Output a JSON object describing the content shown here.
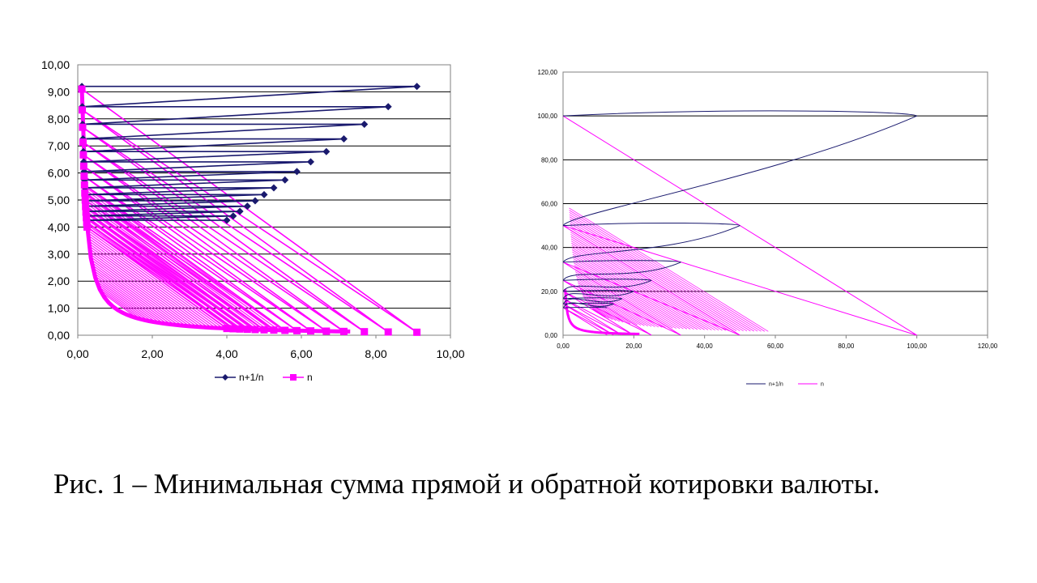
{
  "caption": "Рис. 1 – Минимальная сумма прямой и обратной котировки валюты.",
  "chart_data": [
    {
      "type": "line",
      "title": "",
      "xlabel": "",
      "ylabel": "",
      "xlim": [
        0,
        10
      ],
      "ylim": [
        0,
        10
      ],
      "x_ticks": [
        "0,00",
        "2,00",
        "4,00",
        "6,00",
        "8,00",
        "10,00"
      ],
      "y_ticks": [
        "0,00",
        "1,00",
        "2,00",
        "3,00",
        "4,00",
        "5,00",
        "6,00",
        "7,00",
        "8,00",
        "9,00",
        "10,00"
      ],
      "grid": "horizontal",
      "legend_position": "bottom",
      "series": [
        {
          "name": "n+1/n",
          "color": "#1a1a6e",
          "marker": "diamond",
          "points": [
            [
              0.11,
              9.2
            ],
            [
              9.1,
              9.2
            ],
            [
              0.12,
              8.45
            ],
            [
              8.33,
              8.45
            ],
            [
              0.13,
              7.8
            ],
            [
              7.69,
              7.8
            ],
            [
              0.14,
              7.26
            ],
            [
              7.14,
              7.26
            ],
            [
              0.15,
              6.79
            ],
            [
              6.67,
              6.79
            ],
            [
              0.16,
              6.41
            ],
            [
              6.25,
              6.41
            ],
            [
              0.17,
              6.05
            ],
            [
              5.88,
              6.05
            ],
            [
              0.18,
              5.74
            ],
            [
              5.56,
              5.74
            ],
            [
              0.19,
              5.45
            ],
            [
              5.26,
              5.45
            ],
            [
              0.2,
              5.2
            ],
            [
              5.0,
              5.2
            ],
            [
              0.21,
              4.97
            ],
            [
              4.76,
              4.97
            ],
            [
              0.22,
              4.77
            ],
            [
              4.55,
              4.77
            ],
            [
              0.23,
              4.58
            ],
            [
              4.35,
              4.58
            ],
            [
              0.24,
              4.41
            ],
            [
              4.17,
              4.41
            ],
            [
              0.25,
              4.25
            ],
            [
              4.0,
              4.25
            ]
          ]
        },
        {
          "name": "n",
          "color": "#ff00ff",
          "marker": "square",
          "points": [
            [
              0.11,
              9.1
            ],
            [
              9.1,
              0.11
            ],
            [
              0.12,
              8.33
            ],
            [
              8.33,
              0.12
            ],
            [
              0.13,
              7.69
            ],
            [
              7.69,
              0.13
            ],
            [
              0.14,
              7.14
            ],
            [
              7.14,
              0.14
            ],
            [
              0.15,
              6.67
            ],
            [
              6.67,
              0.15
            ],
            [
              0.16,
              6.25
            ],
            [
              6.25,
              0.16
            ],
            [
              0.17,
              5.88
            ],
            [
              5.88,
              0.17
            ],
            [
              0.18,
              5.56
            ],
            [
              5.56,
              0.18
            ],
            [
              0.19,
              5.26
            ],
            [
              5.26,
              0.19
            ],
            [
              0.2,
              5.0
            ],
            [
              5.0,
              0.2
            ],
            [
              0.21,
              4.76
            ],
            [
              4.76,
              0.21
            ],
            [
              0.22,
              4.55
            ],
            [
              4.55,
              0.22
            ],
            [
              0.23,
              4.35
            ],
            [
              4.35,
              0.23
            ],
            [
              0.24,
              4.17
            ],
            [
              4.17,
              0.24
            ],
            [
              0.25,
              4.0
            ],
            [
              4.0,
              0.25
            ]
          ]
        }
      ]
    },
    {
      "type": "line",
      "title": "",
      "xlabel": "",
      "ylabel": "",
      "xlim": [
        0,
        120
      ],
      "ylim": [
        0,
        120
      ],
      "x_ticks": [
        "0,00",
        "20,00",
        "40,00",
        "60,00",
        "80,00",
        "100,00",
        "120,00"
      ],
      "y_ticks": [
        "0,00",
        "20,00",
        "40,00",
        "60,00",
        "80,00",
        "100,00",
        "120,00"
      ],
      "grid": "horizontal",
      "legend_position": "bottom",
      "series": [
        {
          "name": "n+1/n",
          "color": "#1a1a6e",
          "marker": "none",
          "points": [
            [
              0.01,
              100.0
            ],
            [
              100.0,
              100.0
            ],
            [
              0.02,
              50.0
            ],
            [
              50.0,
              50.0
            ],
            [
              0.03,
              33.3
            ],
            [
              33.3,
              33.3
            ],
            [
              0.04,
              25.0
            ],
            [
              25.0,
              25.0
            ],
            [
              0.05,
              20.0
            ],
            [
              20.0,
              20.0
            ],
            [
              0.06,
              16.7
            ],
            [
              16.7,
              16.7
            ],
            [
              0.07,
              14.3
            ],
            [
              14.3,
              14.3
            ],
            [
              0.08,
              12.5
            ],
            [
              12.5,
              12.5
            ]
          ]
        },
        {
          "name": "n",
          "color": "#ff00ff",
          "marker": "none",
          "points": [
            [
              0.01,
              100.0
            ],
            [
              100.0,
              0.01
            ],
            [
              0.02,
              50.0
            ],
            [
              50.0,
              0.02
            ],
            [
              0.03,
              33.3
            ],
            [
              33.3,
              0.03
            ],
            [
              0.04,
              25.0
            ],
            [
              25.0,
              0.04
            ],
            [
              0.05,
              20.0
            ],
            [
              20.0,
              0.05
            ],
            [
              0.06,
              16.7
            ],
            [
              16.7,
              0.06
            ],
            [
              0.07,
              14.3
            ],
            [
              14.3,
              0.07
            ],
            [
              0.08,
              12.5
            ],
            [
              12.5,
              0.08
            ]
          ]
        }
      ]
    }
  ]
}
